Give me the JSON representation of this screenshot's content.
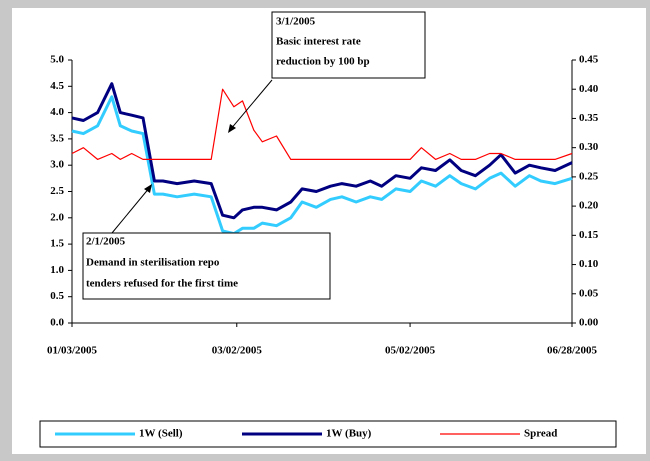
{
  "chart_data": {
    "type": "line",
    "x": [
      "01/03/2005",
      "01/07/2005",
      "01/12/2005",
      "01/17/2005",
      "01/20/2005",
      "01/24/2005",
      "01/28/2005",
      "02/01/2005",
      "02/04/2005",
      "02/09/2005",
      "02/15/2005",
      "02/21/2005",
      "02/25/2005",
      "03/01/2005",
      "03/04/2005",
      "03/08/2005",
      "03/11/2005",
      "03/16/2005",
      "03/21/2005",
      "03/25/2005",
      "03/30/2005",
      "04/04/2005",
      "04/08/2005",
      "04/13/2005",
      "04/18/2005",
      "04/22/2005",
      "04/27/2005",
      "05/02/2005",
      "05/06/2005",
      "05/11/2005",
      "05/16/2005",
      "05/20/2005",
      "05/25/2005",
      "05/30/2005",
      "06/03/2005",
      "06/08/2005",
      "06/13/2005",
      "06/17/2005",
      "06/22/2005",
      "06/28/2005"
    ],
    "series": [
      {
        "name": "1W (Sell)",
        "color": "#33ccff",
        "values": [
          3.65,
          3.6,
          3.75,
          4.3,
          3.75,
          3.65,
          3.6,
          2.45,
          2.45,
          2.4,
          2.45,
          2.4,
          1.75,
          1.7,
          1.8,
          1.8,
          1.9,
          1.85,
          2.0,
          2.3,
          2.2,
          2.35,
          2.4,
          2.3,
          2.4,
          2.35,
          2.55,
          2.5,
          2.7,
          2.6,
          2.8,
          2.65,
          2.55,
          2.75,
          2.85,
          2.6,
          2.8,
          2.7,
          2.65,
          2.75
        ]
      },
      {
        "name": "1W (Buy)",
        "color": "#000080",
        "values": [
          3.9,
          3.85,
          4.0,
          4.55,
          4.0,
          3.95,
          3.9,
          2.7,
          2.7,
          2.65,
          2.7,
          2.65,
          2.05,
          2.0,
          2.15,
          2.2,
          2.2,
          2.15,
          2.3,
          2.55,
          2.5,
          2.6,
          2.65,
          2.6,
          2.7,
          2.6,
          2.8,
          2.75,
          2.95,
          2.9,
          3.1,
          2.9,
          2.8,
          3.0,
          3.2,
          2.85,
          3.0,
          2.95,
          2.9,
          3.05
        ]
      },
      {
        "name": "Spread",
        "color": "#ff0000",
        "axis": "y2",
        "values": [
          0.29,
          0.3,
          0.28,
          0.29,
          0.28,
          0.29,
          0.28,
          0.28,
          0.28,
          0.28,
          0.28,
          0.28,
          0.4,
          0.37,
          0.38,
          0.33,
          0.31,
          0.32,
          0.28,
          0.28,
          0.28,
          0.28,
          0.28,
          0.28,
          0.28,
          0.28,
          0.28,
          0.28,
          0.3,
          0.28,
          0.29,
          0.28,
          0.28,
          0.29,
          0.29,
          0.28,
          0.28,
          0.28,
          0.28,
          0.29
        ]
      }
    ],
    "xticks": [
      "01/03/2005",
      "03/02/2005",
      "05/02/2005",
      "06/28/2005"
    ],
    "ylim": [
      0,
      5
    ],
    "yticks": [
      {
        "value": 0,
        "label": "0.0"
      },
      {
        "value": 0.5,
        "label": "0.5"
      },
      {
        "value": 1,
        "label": "1.0"
      },
      {
        "value": 1.5,
        "label": "1.5"
      },
      {
        "value": 2,
        "label": "2.0"
      },
      {
        "value": 2.5,
        "label": "2.5"
      },
      {
        "value": 3,
        "label": "3.0"
      },
      {
        "value": 3.5,
        "label": "3.5"
      },
      {
        "value": 4,
        "label": "4.0"
      },
      {
        "value": 4.5,
        "label": "4.5"
      },
      {
        "value": 5,
        "label": "5.0"
      }
    ],
    "y2lim": [
      0,
      0.45
    ],
    "y2ticks": [
      {
        "value": 0,
        "label": "0.00"
      },
      {
        "value": 0.05,
        "label": "0.05"
      },
      {
        "value": 0.1,
        "label": "0.10"
      },
      {
        "value": 0.15,
        "label": "0.15"
      },
      {
        "value": 0.2,
        "label": "0.20"
      },
      {
        "value": 0.25,
        "label": "0.25"
      },
      {
        "value": 0.3,
        "label": "0.30"
      },
      {
        "value": 0.35,
        "label": "0.35"
      },
      {
        "value": 0.4,
        "label": "0.40"
      },
      {
        "value": 0.45,
        "label": "0.45"
      }
    ],
    "legend": "bottom",
    "annotations": [
      [
        "3/1/2005",
        "Basic interest rate",
        "reduction by 100 bp"
      ],
      [
        "2/1/2005",
        "Demand in sterilisation repo",
        "tenders refused for the first time"
      ]
    ]
  }
}
